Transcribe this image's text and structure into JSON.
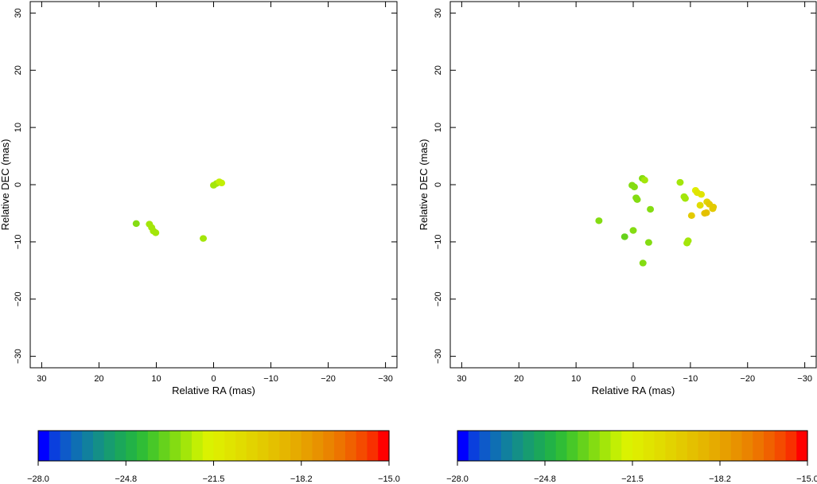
{
  "chart_data": [
    {
      "type": "scatter",
      "xlabel": "Relative RA (mas)",
      "ylabel": "Relative DEC (mas)",
      "xlim": [
        32,
        -32
      ],
      "ylim": [
        -32,
        32
      ],
      "xticks": [
        30,
        20,
        10,
        0,
        -10,
        -20,
        -30
      ],
      "yticks": [
        -30,
        -20,
        -10,
        0,
        10,
        20,
        30
      ],
      "points": [
        {
          "x": 13.5,
          "y": -6.8,
          "v": -22.8
        },
        {
          "x": 11.2,
          "y": -6.9,
          "v": -22.6
        },
        {
          "x": 10.8,
          "y": -7.5,
          "v": -22.5
        },
        {
          "x": 10.5,
          "y": -8.1,
          "v": -22.4
        },
        {
          "x": 10.1,
          "y": -8.4,
          "v": -22.4
        },
        {
          "x": 1.8,
          "y": -9.4,
          "v": -22.5
        },
        {
          "x": 0.0,
          "y": -0.1,
          "v": -22.6
        },
        {
          "x": -0.5,
          "y": 0.2,
          "v": -22.4
        },
        {
          "x": -1.0,
          "y": 0.5,
          "v": -22.1
        },
        {
          "x": -1.4,
          "y": 0.3,
          "v": -22.0
        }
      ]
    },
    {
      "type": "scatter",
      "xlabel": "Relative RA (mas)",
      "ylabel": "Relative DEC (mas)",
      "xlim": [
        32,
        -32
      ],
      "ylim": [
        -32,
        32
      ],
      "xticks": [
        30,
        20,
        10,
        0,
        -10,
        -20,
        -30
      ],
      "yticks": [
        -30,
        -20,
        -10,
        0,
        10,
        20,
        30
      ],
      "points": [
        {
          "x": 6.0,
          "y": -6.3,
          "v": -23.0
        },
        {
          "x": 1.5,
          "y": -9.1,
          "v": -23.2
        },
        {
          "x": 0.0,
          "y": -8.0,
          "v": -23.1
        },
        {
          "x": 0.2,
          "y": -0.1,
          "v": -23.0
        },
        {
          "x": -0.2,
          "y": -0.4,
          "v": -23.0
        },
        {
          "x": -0.5,
          "y": -2.3,
          "v": -23.1
        },
        {
          "x": -0.7,
          "y": -2.6,
          "v": -23.0
        },
        {
          "x": -1.6,
          "y": 1.1,
          "v": -22.8
        },
        {
          "x": -2.0,
          "y": 0.8,
          "v": -22.7
        },
        {
          "x": -1.7,
          "y": -13.7,
          "v": -23.0
        },
        {
          "x": -2.7,
          "y": -10.1,
          "v": -23.0
        },
        {
          "x": -3.0,
          "y": -4.3,
          "v": -22.8
        },
        {
          "x": -8.2,
          "y": 0.4,
          "v": -22.5
        },
        {
          "x": -8.9,
          "y": -2.1,
          "v": -22.7
        },
        {
          "x": -9.1,
          "y": -2.4,
          "v": -22.7
        },
        {
          "x": -9.4,
          "y": -10.2,
          "v": -22.6
        },
        {
          "x": -9.6,
          "y": -9.8,
          "v": -22.6
        },
        {
          "x": -10.2,
          "y": -5.4,
          "v": -19.6
        },
        {
          "x": -10.9,
          "y": -1.0,
          "v": -21.2
        },
        {
          "x": -11.2,
          "y": -1.4,
          "v": -21.0
        },
        {
          "x": -11.7,
          "y": -3.6,
          "v": -20.6
        },
        {
          "x": -11.9,
          "y": -1.7,
          "v": -20.8
        },
        {
          "x": -12.5,
          "y": -5.0,
          "v": -19.4
        },
        {
          "x": -12.8,
          "y": -4.9,
          "v": -19.3
        },
        {
          "x": -12.9,
          "y": -3.0,
          "v": -20.0
        },
        {
          "x": -13.3,
          "y": -3.4,
          "v": -19.8
        },
        {
          "x": -13.9,
          "y": -4.2,
          "v": -19.5
        },
        {
          "x": -14.0,
          "y": -3.9,
          "v": -19.6
        }
      ]
    }
  ],
  "colorbar": {
    "min": -28.0,
    "max": -15.0,
    "tick_labels": [
      "−28.0",
      "−24.8",
      "−21.5",
      "−18.2",
      "−15.0"
    ],
    "colors": [
      "#0000ff",
      "#0a3fdd",
      "#0e5ac9",
      "#0f6fb3",
      "#11809e",
      "#148f87",
      "#179c70",
      "#1ba75a",
      "#22b247",
      "#30bd36",
      "#48c828",
      "#66d21c",
      "#84dc12",
      "#a3e60a",
      "#c2ef04",
      "#daf201",
      "#dfec00",
      "#e0e400",
      "#e1dc00",
      "#e2d300",
      "#e3ca00",
      "#e4c000",
      "#e5b600",
      "#e6ab00",
      "#e79f00",
      "#e89200",
      "#ea8400",
      "#ed7400",
      "#f06100",
      "#f44b00",
      "#f83000",
      "#ff0000"
    ]
  }
}
